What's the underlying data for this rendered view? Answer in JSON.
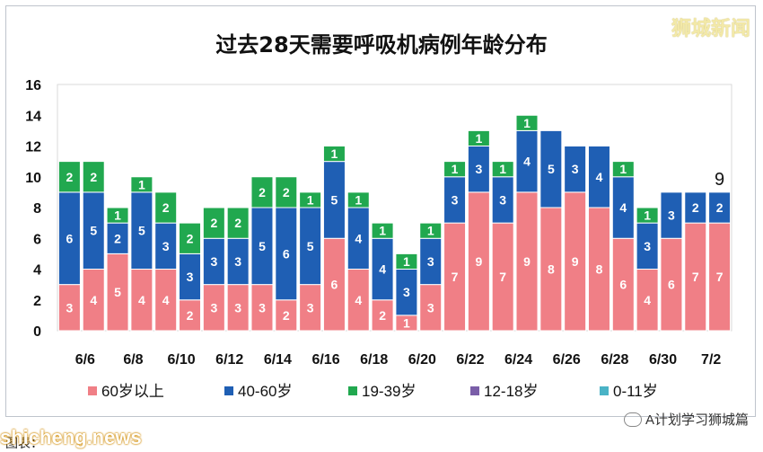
{
  "brand_watermark": "狮城新闻",
  "footer": {
    "site": "shicheng.news",
    "credit": "图表：",
    "account": "A计划学习狮城篇"
  },
  "chart_data": {
    "type": "bar",
    "stacked": true,
    "title": "过去28天需要呼吸机病例年龄分布",
    "ylim": [
      0,
      16
    ],
    "yticks": [
      0,
      2,
      4,
      6,
      8,
      10,
      12,
      14,
      16
    ],
    "grid": false,
    "legend_position": "bottom",
    "categories": [
      "6/5",
      "6/6",
      "6/7",
      "6/8",
      "6/9",
      "6/10",
      "6/11",
      "6/12",
      "6/13",
      "6/14",
      "6/15",
      "6/16",
      "6/17",
      "6/18",
      "6/19",
      "6/20",
      "6/21",
      "6/22",
      "6/23",
      "6/24",
      "6/25",
      "6/26",
      "6/27",
      "6/28",
      "6/29",
      "6/30",
      "7/1",
      "7/2"
    ],
    "xtick_labels": [
      "6/6",
      "6/8",
      "6/10",
      "6/12",
      "6/14",
      "6/16",
      "6/18",
      "6/20",
      "6/22",
      "6/24",
      "6/26",
      "6/28",
      "6/30",
      "7/2"
    ],
    "series": [
      {
        "name": "60岁以上",
        "color": "#f07f86",
        "values": [
          3,
          4,
          5,
          4,
          4,
          2,
          3,
          3,
          3,
          2,
          3,
          6,
          4,
          2,
          1,
          3,
          7,
          9,
          7,
          9,
          8,
          9,
          8,
          6,
          4,
          6,
          7,
          7
        ]
      },
      {
        "name": "40-60岁",
        "color": "#1f5fb4",
        "values": [
          6,
          5,
          2,
          5,
          3,
          3,
          3,
          3,
          5,
          6,
          5,
          5,
          4,
          4,
          3,
          3,
          3,
          3,
          3,
          4,
          5,
          3,
          4,
          4,
          3,
          3,
          2,
          2
        ]
      },
      {
        "name": "19-39岁",
        "color": "#21a84f",
        "values": [
          2,
          2,
          1,
          1,
          2,
          2,
          2,
          2,
          2,
          2,
          1,
          1,
          1,
          1,
          1,
          1,
          1,
          1,
          1,
          1,
          0,
          0,
          0,
          1,
          1,
          0,
          0,
          0
        ]
      },
      {
        "name": "12-18岁",
        "color": "#7a5ea8",
        "values": [
          0,
          0,
          0,
          0,
          0,
          0,
          0,
          0,
          0,
          0,
          0,
          0,
          0,
          0,
          0,
          0,
          0,
          0,
          0,
          0,
          0,
          0,
          0,
          0,
          0,
          0,
          0,
          0
        ]
      },
      {
        "name": "0-11岁",
        "color": "#4ab3c6",
        "values": [
          0,
          0,
          0,
          0,
          0,
          0,
          0,
          0,
          0,
          0,
          0,
          0,
          0,
          0,
          0,
          0,
          0,
          0,
          0,
          0,
          0,
          0,
          0,
          0,
          0,
          0,
          0,
          0
        ]
      }
    ],
    "annotations": [
      {
        "category": "7/2",
        "text": "9"
      }
    ]
  }
}
